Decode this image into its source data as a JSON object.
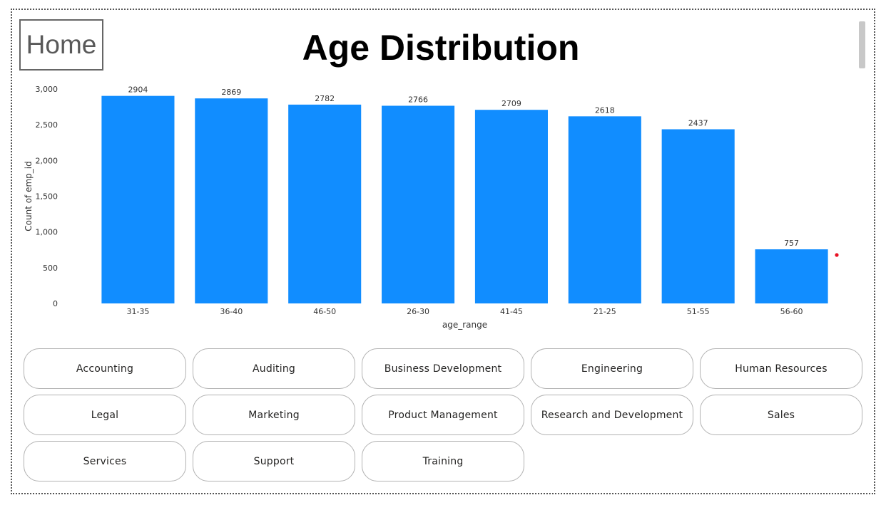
{
  "home": {
    "label": "Home"
  },
  "page": {
    "title": "Age Distribution"
  },
  "chart_data": {
    "type": "bar",
    "categories": [
      "31-35",
      "36-40",
      "46-50",
      "26-30",
      "41-45",
      "21-25",
      "51-55",
      "56-60"
    ],
    "values": [
      2904,
      2869,
      2782,
      2766,
      2709,
      2618,
      2437,
      757
    ],
    "data_labels": [
      "2904",
      "2869",
      "2782",
      "2766",
      "2709",
      "2618",
      "2437",
      "757"
    ],
    "xlabel": "age_range",
    "ylabel": "Count of emp_id",
    "ylim": [
      0,
      3000
    ],
    "yticks": [
      0,
      500,
      1000,
      1500,
      2000,
      2500,
      3000
    ],
    "ytick_labels": [
      "0",
      "500",
      "1,000",
      "1,500",
      "2,000",
      "2,500",
      "3,000"
    ],
    "grid": false,
    "bar_color": "#118DFF"
  },
  "departments": [
    "Accounting",
    "Auditing",
    "Business Development",
    "Engineering",
    "Human Resources",
    "Legal",
    "Marketing",
    "Product Management",
    "Research and Development",
    "Sales",
    "Services",
    "Support",
    "Training"
  ],
  "colors": {
    "accent": "#118DFF",
    "marker": "#E81123"
  }
}
